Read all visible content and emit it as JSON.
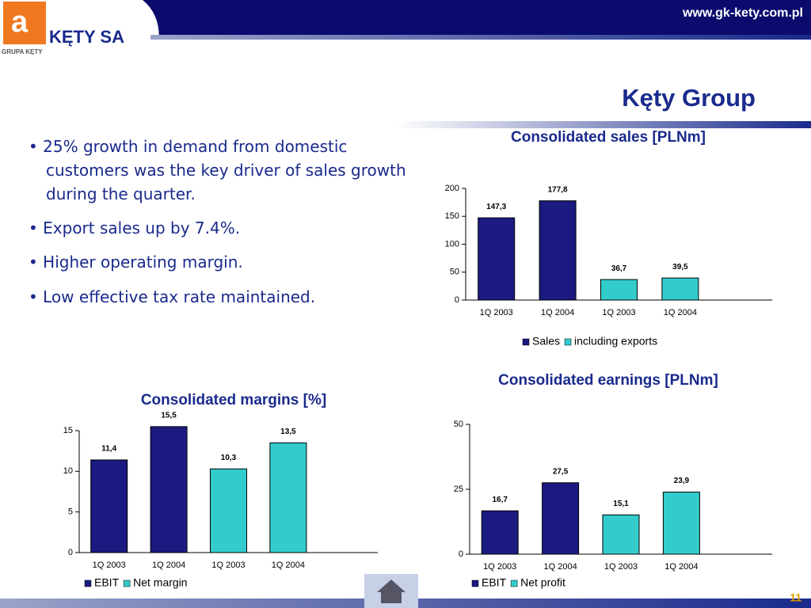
{
  "header": {
    "url": "www.gk-kety.com.pl",
    "logo_name": "KĘTY SA",
    "logo_group": "GRUPA KĘTY",
    "title": "Kęty Group",
    "page": "11"
  },
  "bullets": [
    "25% growth in demand from domestic customers was the key driver of sales growth during the quarter.",
    "Export sales up by 7.4%.",
    "Higher operating margin.",
    "Low effective tax rate maintained."
  ],
  "chart_data": [
    {
      "type": "bar",
      "title": "Consolidated sales [PLNm]",
      "categories": [
        "1Q 2003",
        "1Q 2004",
        "1Q 2003",
        "1Q 2004"
      ],
      "series": [
        {
          "name": "Sales",
          "color": "#1a1a80",
          "values": [
            147.3,
            177.8,
            null,
            null
          ],
          "value_labels": [
            "147,3",
            "177,8",
            null,
            null
          ]
        },
        {
          "name": "including exports",
          "color": "#33cccc",
          "values": [
            null,
            null,
            36.7,
            39.5
          ],
          "value_labels": [
            null,
            null,
            "36,7",
            "39,5"
          ]
        }
      ],
      "ylim": [
        0,
        200
      ],
      "yticks": [
        0,
        50,
        100,
        150,
        200
      ],
      "legend": "bottom"
    },
    {
      "type": "bar",
      "title": "Consolidated margins [%]",
      "categories": [
        "1Q 2003",
        "1Q 2004",
        "1Q 2003",
        "1Q 2004"
      ],
      "series": [
        {
          "name": "EBIT",
          "color": "#1a1a80",
          "values": [
            11.4,
            15.5,
            null,
            null
          ],
          "value_labels": [
            "11,4",
            "15,5",
            null,
            null
          ]
        },
        {
          "name": "Net margin",
          "color": "#33cccc",
          "values": [
            null,
            null,
            10.3,
            13.5
          ],
          "value_labels": [
            null,
            null,
            "10,3",
            "13,5"
          ]
        }
      ],
      "ylim": [
        0,
        15
      ],
      "yticks": [
        0,
        5,
        10,
        15
      ],
      "legend": "bottom"
    },
    {
      "type": "bar",
      "title": "Consolidated earnings [PLNm]",
      "categories": [
        "1Q 2003",
        "1Q 2004",
        "1Q 2003",
        "1Q 2004"
      ],
      "series": [
        {
          "name": "EBIT",
          "color": "#1a1a80",
          "values": [
            16.7,
            27.5,
            null,
            null
          ],
          "value_labels": [
            "16,7",
            "27,5",
            null,
            null
          ]
        },
        {
          "name": "Net profit",
          "color": "#33cccc",
          "values": [
            null,
            null,
            15.1,
            23.9
          ],
          "value_labels": [
            null,
            null,
            "15,1",
            "23,9"
          ]
        }
      ],
      "ylim": [
        0,
        50
      ],
      "yticks": [
        0,
        25,
        50
      ],
      "legend": "bottom"
    }
  ]
}
